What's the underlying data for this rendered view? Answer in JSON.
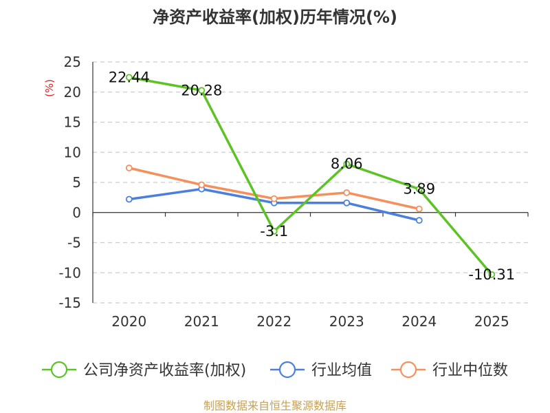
{
  "chart_data": {
    "type": "line",
    "title": "净资产收益率(加权)历年情况(%)",
    "ylabel": "(%)",
    "xlabel": "",
    "categories": [
      "2020",
      "2021",
      "2022",
      "2023",
      "2024",
      "2025"
    ],
    "ylim": [
      -15,
      25
    ],
    "yticks": [
      25,
      20,
      15,
      10,
      5,
      0,
      -5,
      -10,
      -15
    ],
    "ytick_labels": [
      "25",
      "20",
      "15",
      "10",
      "5",
      "0",
      "-5",
      "-10",
      "-15"
    ],
    "grid": "horizontal dashed",
    "legend_position": "bottom",
    "series": [
      {
        "name": "公司净资产收益率(加权)",
        "color": "#5bc424",
        "values": [
          22.44,
          20.28,
          -3.1,
          8.06,
          3.89,
          -10.31
        ],
        "labels": [
          "22.44",
          "20.28",
          "-3.1",
          "8.06",
          "3.89",
          "-10.31"
        ]
      },
      {
        "name": "行业均值",
        "color": "#4a7fde",
        "values": [
          2.2,
          3.9,
          1.6,
          1.6,
          -1.3,
          null
        ]
      },
      {
        "name": "行业中位数",
        "color": "#f5905c",
        "values": [
          7.4,
          4.6,
          2.3,
          3.3,
          0.6,
          null
        ]
      }
    ],
    "source": "制图数据来自恒生聚源数据库",
    "source_color": "#c8a050",
    "unit_color": "#e02020"
  }
}
